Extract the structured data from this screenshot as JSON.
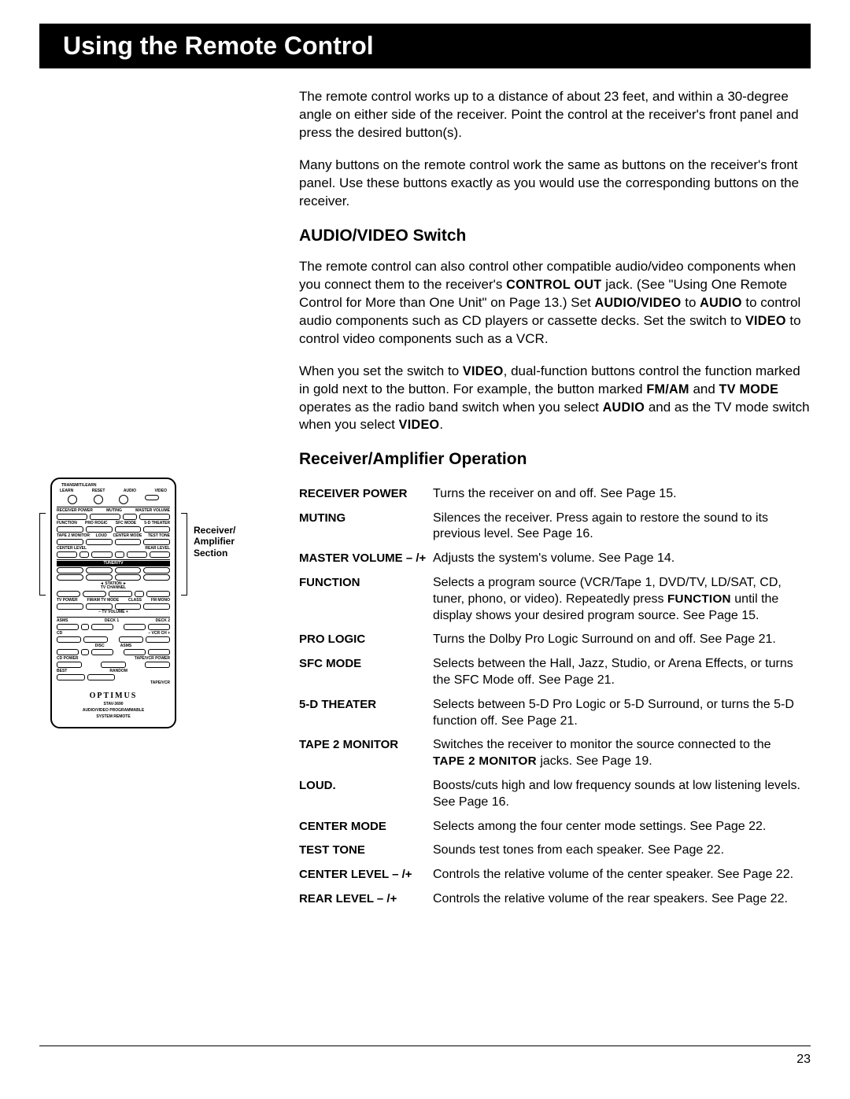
{
  "title": "Using the Remote Control",
  "intro": {
    "p1": "The remote control works up to a distance of about 23 feet, and within a 30-degree angle on either side of the receiver. Point the control at the receiver's front panel and press the desired button(s).",
    "p2": "Many buttons on the remote control work the same as buttons on the receiver's front panel. Use these buttons exactly as you would use the corresponding buttons on the receiver."
  },
  "section_av": {
    "heading": "AUDIO/VIDEO Switch",
    "p1a": "The remote control can also control other compatible audio/video components when you connect them to the receiver's ",
    "p1b": "CONTROL OUT",
    "p1c": " jack. (See \"Using One Remote Control for More than One Unit\" on Page 13.) Set ",
    "p1d": "AUDIO/VIDEO",
    "p1e": " to ",
    "p1f": "AUDIO",
    "p1g": " to control audio components such as CD players or cassette decks. Set the switch to ",
    "p1h": "VIDEO",
    "p1i": " to control video components such as a VCR.",
    "p2a": "When you set the switch to ",
    "p2b": "VIDEO",
    "p2c": ", dual-function buttons control the function marked in gold next to the button. For example, the button marked ",
    "p2d": "FM/AM",
    "p2e": " and ",
    "p2f": "TV MODE",
    "p2g": " operates as the radio band switch when you select ",
    "p2h": "AUDIO",
    "p2i": " and as the TV mode switch when you select ",
    "p2j": "VIDEO",
    "p2k": "."
  },
  "section_ra": {
    "heading": "Receiver/Amplifier Operation",
    "rows": [
      {
        "label": "RECEIVER POWER",
        "desc": "Turns the receiver on and off. See Page 15."
      },
      {
        "label": "MUTING",
        "desc": "Silences the receiver. Press again to restore the sound to its previous level. See Page 16."
      },
      {
        "label": "MASTER VOLUME – /+",
        "desc": "Adjusts the system's volume. See Page 14."
      },
      {
        "label": "FUNCTION",
        "desc_pre": "Selects a program source (VCR/Tape 1, DVD/TV, LD/SAT, CD, tuner, phono, or video). Repeatedly press ",
        "desc_sc": "FUNCTION",
        "desc_post": " until the display shows your desired program source. See Page 15."
      },
      {
        "label": "PRO LOGIC",
        "desc": "Turns the Dolby Pro Logic Surround on and off. See Page 21."
      },
      {
        "label": "SFC MODE",
        "desc": "Selects between the Hall, Jazz, Studio, or Arena Effects, or turns the SFC Mode off. See Page 21."
      },
      {
        "label": "5-D THEATER",
        "desc": "Selects between 5-D Pro Logic or 5-D Surround, or turns the 5-D function off. See Page 21."
      },
      {
        "label": "TAPE 2 MONITOR",
        "desc_pre": "Switches the receiver to monitor the source connected to the ",
        "desc_sc": "TAPE 2 MONITOR",
        "desc_post": " jacks. See Page 19."
      },
      {
        "label": "LOUD.",
        "desc": "Boosts/cuts high and low frequency sounds at low listening levels. See Page 16."
      },
      {
        "label": "CENTER MODE",
        "desc": "Selects among the four center mode settings. See Page 22."
      },
      {
        "label": "TEST TONE",
        "desc": "Sounds test tones from each speaker. See Page 22."
      },
      {
        "label": "CENTER LEVEL – /+",
        "desc": "Controls the relative volume of the center speaker. See Page 22."
      },
      {
        "label": "REAR LEVEL – /+",
        "desc": "Controls the relative volume of the rear speakers. See Page 22."
      }
    ]
  },
  "figure": {
    "side_label1": "Receiver/",
    "side_label2": "Amplifier",
    "side_label3": "Section",
    "transmit": "TRANSMIT/LEARN",
    "learn": "LEARN",
    "reset": "RESET",
    "audio": "AUDIO",
    "video": "VIDEO",
    "receiver_power": "RECEIVER POWER",
    "muting": "MUTING",
    "master_volume": "MASTER VOLUME",
    "function": "FUNCTION",
    "pro_rogic": "PRO ROGIC",
    "sfc_mode": "SFC MODE",
    "theater": "5-D THEATER",
    "tape2": "TAPE 2 MONITOR",
    "loud": "LOUD",
    "center_mode": "CENTER MODE",
    "test_tone": "TEST TONE",
    "center_level": "CENTER LEVEL",
    "rear_level": "REAR LEVEL",
    "tuner_tv": "TUNER/TV",
    "station": "◄ STATION ►",
    "tv_channel": "TV CHANNEL",
    "tv_power": "TV POWER",
    "fm_am": "FM/AM TV MODE",
    "class": "CLASS",
    "fm_mono": "FM MONO",
    "tv_volume": "– TV VOLUME +",
    "asms": "ASMS",
    "deck1": "DECK 1",
    "deck2": "DECK 2",
    "cd": "CD",
    "vcr_ch": "– VCR CH +",
    "disc": "DISC",
    "cd_power": "CD POWER",
    "tape_vcr_power": "TAPE/VCR POWER",
    "best": "BEST",
    "random": "RANDOM",
    "tape_vcr": "TAPE/VCR",
    "brand": "OPTIMUS",
    "model": "STAV-3690",
    "sub1": "AUDIO/VIDEO PROGRAMMABLE",
    "sub2": "SYSTEM REMOTE"
  },
  "page_number": "23"
}
